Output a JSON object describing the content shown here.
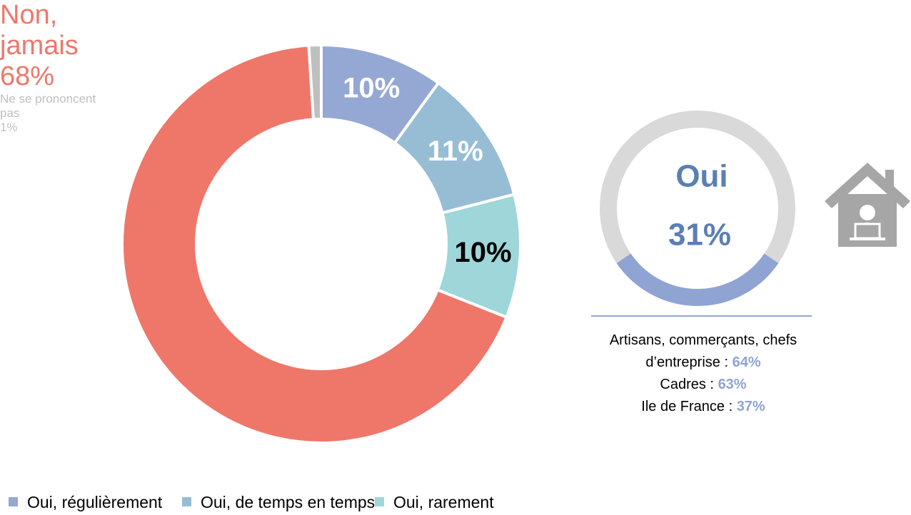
{
  "chart_data": [
    {
      "type": "donut",
      "categories": [
        "Oui, régulièrement",
        "Oui, de temps en temps",
        "Oui, rarement",
        "Non, jamais",
        "Ne se prononcent pas"
      ],
      "values": [
        10,
        11,
        10,
        68,
        1
      ],
      "value_labels": [
        "10%",
        "11%",
        "10%",
        "68%",
        "1%"
      ],
      "colors": [
        "#95a8d4",
        "#97bdd5",
        "#9ed6da",
        "#ee776a",
        "#bfbfbf"
      ],
      "label_colors": [
        "#ffffff",
        "#ffffff",
        "#000000",
        "#ee776a",
        "#bfbfbf"
      ],
      "label_inside": [
        true,
        true,
        true,
        false,
        false
      ]
    },
    {
      "type": "gauge",
      "title": "Oui",
      "value": 31,
      "value_label": "31%",
      "color": "#8fa4d2",
      "track_color": "#d9d9d9",
      "breakdown": [
        {
          "label": "Artisans, commerçants, chefs d’entreprise :",
          "value": 64,
          "value_label": "64%"
        },
        {
          "label": "Cadres :",
          "value": 63,
          "value_label": "63%"
        },
        {
          "label": "Ile de France :",
          "value": 37,
          "value_label": "37%"
        }
      ]
    }
  ]
}
